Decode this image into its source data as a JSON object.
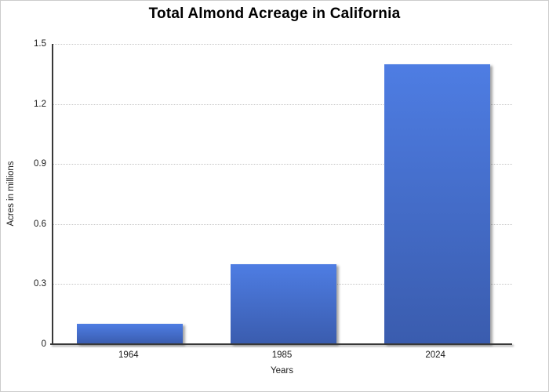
{
  "chart_data": {
    "type": "bar",
    "title": "Total Almond Acreage in California",
    "categories": [
      "1964",
      "1985",
      "2024"
    ],
    "values": [
      0.1,
      0.4,
      1.4
    ],
    "xlabel": "Years",
    "ylabel": "Acres in millions",
    "ylim": [
      0,
      1.5
    ],
    "yticks": [
      "0",
      "0.3",
      "0.6",
      "0.9",
      "1.2",
      "1.5"
    ],
    "grid": "horizontal dotted",
    "legend": "none",
    "colors": {
      "bar_gradient_top": "#4e7de3",
      "bar_gradient_bottom": "#3a5cae",
      "axis": "#383838",
      "gridline": "#c6c6c6",
      "text": "#1a1a1a",
      "background": "#ffffff"
    }
  }
}
